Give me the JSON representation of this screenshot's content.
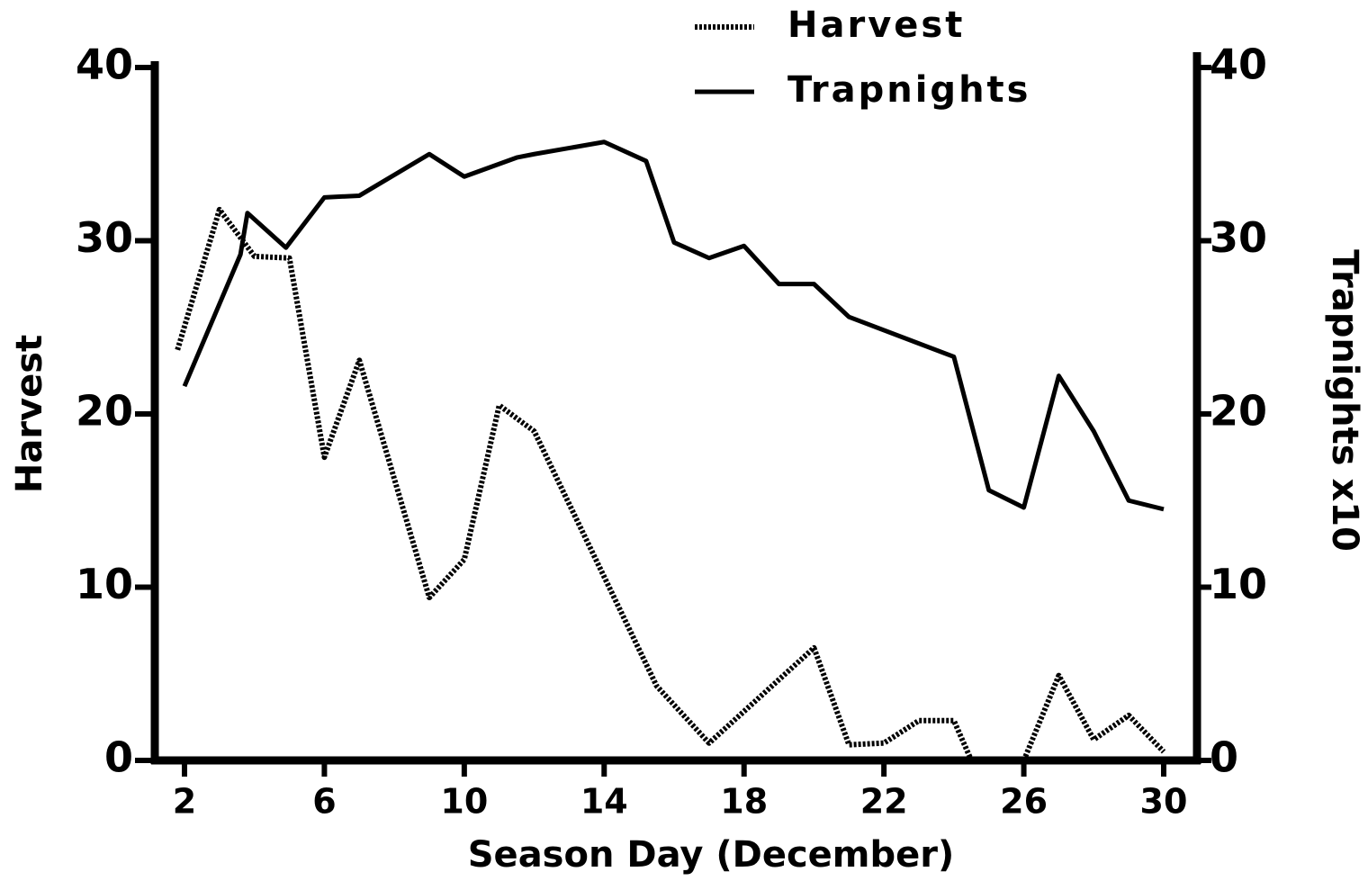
{
  "chart_data": {
    "type": "line",
    "xlabel": "Season Day (December)",
    "ylabel": "Harvest",
    "y2label": "Trapnights x10",
    "xlim": [
      2,
      30
    ],
    "xticks": [
      2,
      6,
      10,
      14,
      18,
      22,
      26,
      30
    ],
    "ylim": [
      0,
      40
    ],
    "yticks": [
      0,
      10,
      20,
      30,
      40
    ],
    "y2lim": [
      0,
      40
    ],
    "y2ticks": [
      0,
      10,
      20,
      30,
      40
    ],
    "legend": "top",
    "series": [
      {
        "name": "Harvest",
        "color": "#000000",
        "style": "dotted",
        "x": [
          1.8,
          3,
          4,
          5,
          6,
          7,
          9,
          10,
          11,
          12,
          15.5,
          17,
          20,
          21,
          22,
          23,
          24,
          24.5,
          26,
          27,
          28,
          29,
          30
        ],
        "values": [
          23.7,
          31.8,
          29.1,
          29,
          17.5,
          23.1,
          9.4,
          11.6,
          20.5,
          19,
          4.3,
          1,
          6.5,
          0.9,
          1,
          2.3,
          2.3,
          0,
          0,
          4.9,
          1.2,
          2.6,
          0.5
        ]
      },
      {
        "name": "Trapnights",
        "color": "#000000",
        "style": "solid",
        "axis": "y2",
        "x": [
          2,
          3.6,
          3.8,
          4.9,
          6,
          7,
          9,
          10,
          11.5,
          12,
          14,
          15.2,
          16,
          17,
          18,
          19,
          20,
          21,
          24,
          25,
          26,
          27,
          28,
          29,
          30
        ],
        "values": [
          21.6,
          29.2,
          31.6,
          29.6,
          32.5,
          32.6,
          35,
          33.7,
          34.8,
          35,
          35.7,
          34.6,
          29.9,
          29,
          29.7,
          27.5,
          27.5,
          25.6,
          23.3,
          15.6,
          14.6,
          22.2,
          19,
          15,
          14.5
        ]
      }
    ]
  }
}
